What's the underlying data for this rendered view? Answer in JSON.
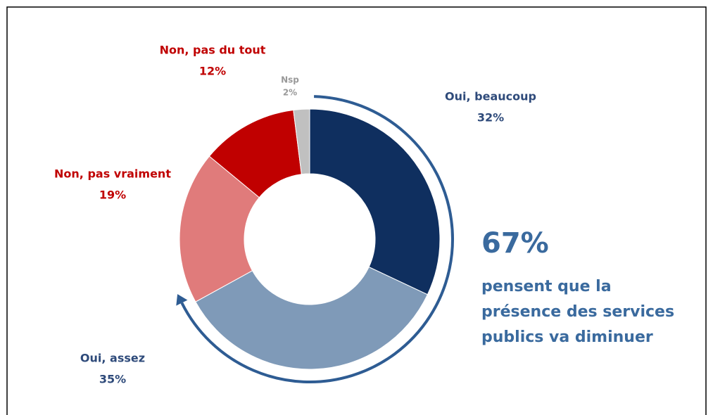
{
  "chart_data": {
    "type": "donut",
    "categories": [
      "Oui, beaucoup",
      "Oui, assez",
      "Non, pas vraiment",
      "Non, pas du tout",
      "Nsp"
    ],
    "values": [
      32,
      35,
      19,
      12,
      2
    ],
    "value_labels": [
      "32%",
      "35%",
      "19%",
      "12%",
      "2%"
    ],
    "colors": [
      "#0f2f5f",
      "#7f9ab8",
      "#e07b7b",
      "#c00000",
      "#c0c0c0"
    ],
    "annotations": [
      "67%",
      "pensent que la",
      "présence des services",
      "publics va diminuer"
    ]
  }
}
